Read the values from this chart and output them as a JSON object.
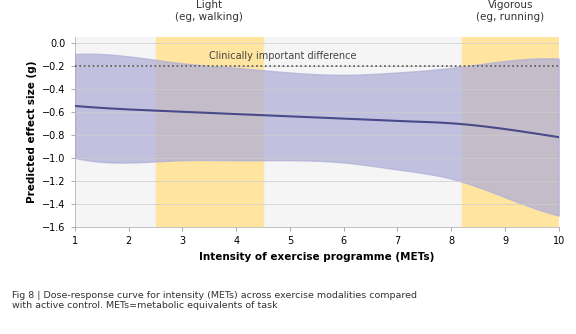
{
  "xlim": [
    1,
    10
  ],
  "ylim": [
    -1.6,
    0.05
  ],
  "yticks": [
    0,
    -0.2,
    -0.4,
    -0.6,
    -0.8,
    -1.0,
    -1.2,
    -1.4,
    -1.6
  ],
  "xticks": [
    1,
    2,
    3,
    4,
    5,
    6,
    7,
    8,
    9,
    10
  ],
  "xlabel": "Intensity of exercise programme (METs)",
  "ylabel": "Predicted effect size (g)",
  "clinically_important_y": -0.2,
  "clinically_label": "Clinically important difference",
  "light_x_start": 2.5,
  "light_x_end": 4.5,
  "vigorous_x_start": 8.2,
  "vigorous_x_end": 10.0,
  "light_label_line1": "Light",
  "light_label_line2": "(eg, walking)",
  "vigorous_label_line1": "Vigorous",
  "vigorous_label_line2": "(eg, running)",
  "highlight_color": "#FFE5A0",
  "ci_band_color": "#B0B0D8",
  "line_color": "#4A4A8A",
  "background_color": "#F5F5F5",
  "caption": "Fig 8 | Dose-response curve for intensity (METs) across exercise modalities compared\nwith active control. METs=metabolic equivalents of task",
  "mean_x": [
    1,
    2,
    3,
    4,
    5,
    6,
    7,
    8,
    9,
    10
  ],
  "mean_y": [
    -0.55,
    -0.58,
    -0.6,
    -0.62,
    -0.64,
    -0.66,
    -0.68,
    -0.7,
    -0.75,
    -0.82
  ],
  "upper_ci": [
    -0.1,
    -0.12,
    -0.18,
    -0.22,
    -0.26,
    -0.28,
    -0.26,
    -0.22,
    -0.16,
    -0.14
  ],
  "lower_ci": [
    -1.0,
    -1.04,
    -1.02,
    -1.02,
    -1.02,
    -1.04,
    -1.1,
    -1.18,
    -1.34,
    -1.5
  ]
}
